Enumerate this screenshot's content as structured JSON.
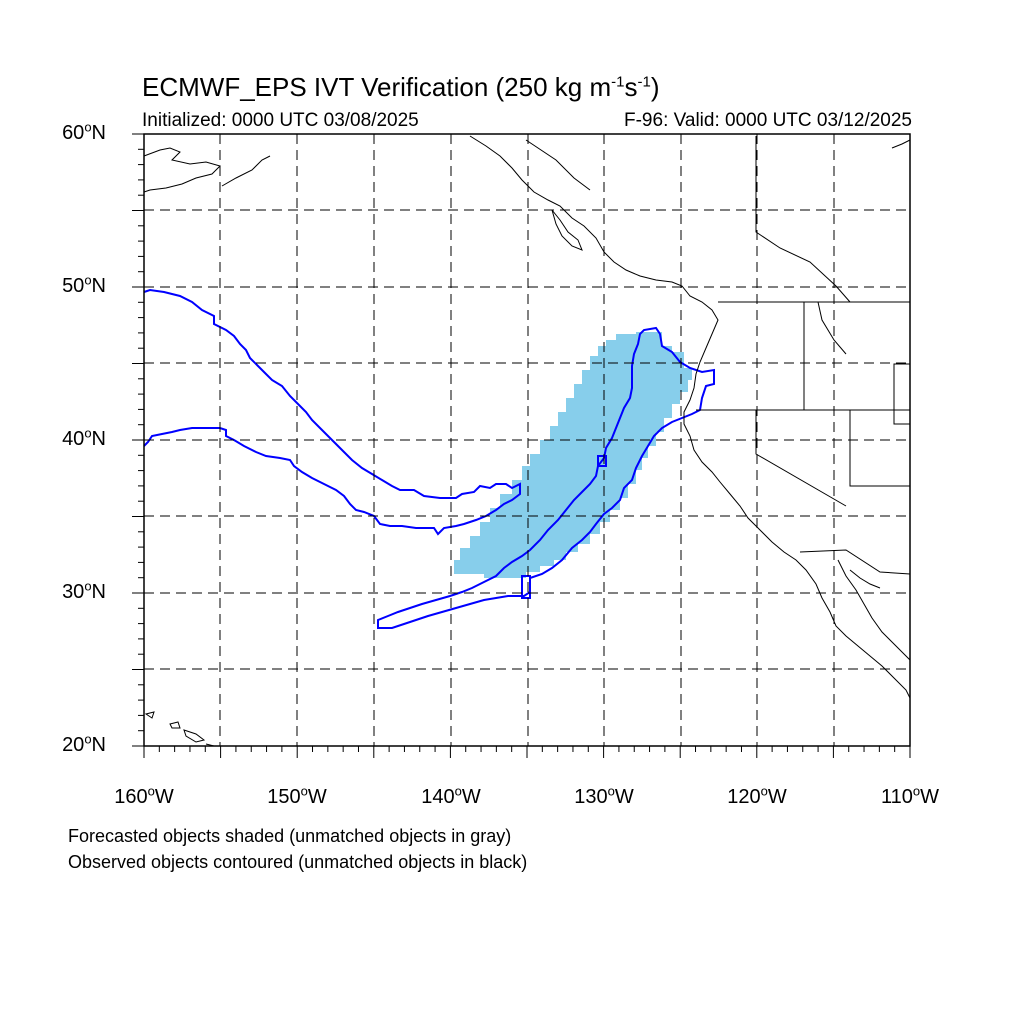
{
  "header": {
    "title_main": "ECMWF_EPS IVT Verification (250 kg m",
    "title_exp1": "-1",
    "title_mid": "s",
    "title_exp2": "-1",
    "title_end": ")",
    "initialized": "Initialized: 0000 UTC 03/08/2025",
    "valid": "F-96: Valid: 0000 UTC 03/12/2025"
  },
  "map": {
    "lon_range": [
      -160,
      -110
    ],
    "lat_range": [
      20,
      60
    ],
    "grid": "dashed every 5 degrees",
    "y_tick_labels": [
      "60",
      "50",
      "40",
      "30",
      "20"
    ],
    "y_tick_suffix": "N",
    "x_tick_labels": [
      "160",
      "150",
      "140",
      "130",
      "120",
      "110"
    ],
    "x_tick_suffix": "W",
    "forecast_object_color": "#87ceeb",
    "observed_contour_color": "#0000ff"
  },
  "footer": {
    "note1": "Forecasted objects shaded (unmatched objects in gray)",
    "note2": "Observed objects contoured (unmatched objects in black)"
  }
}
